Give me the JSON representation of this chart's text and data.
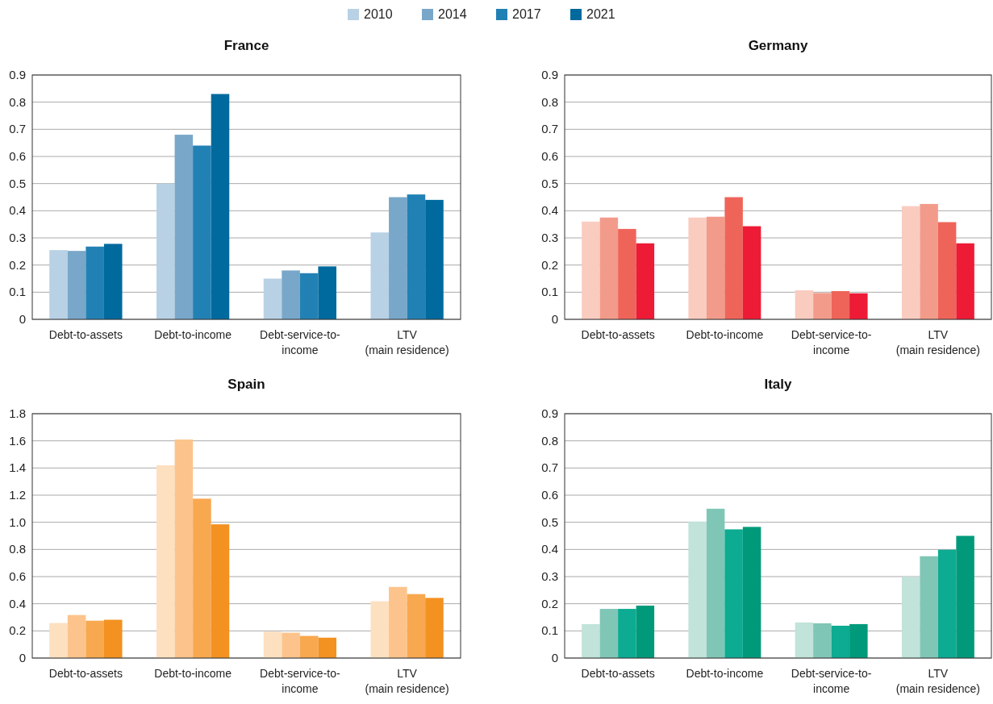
{
  "chart_data": [
    {
      "type": "bar",
      "title": "France",
      "categories": [
        "Debt-to-assets",
        "Debt-to-income",
        "Debt-service-to-income",
        "LTV (main residence)"
      ],
      "legend": "top",
      "grid": "y",
      "ylim": [
        0,
        0.9
      ],
      "yticks": [
        0,
        0.1,
        0.2,
        0.3,
        0.4,
        0.5,
        0.6,
        0.7,
        0.8,
        0.9
      ],
      "series": [
        {
          "name": "2010",
          "color": "#b8d1e5",
          "values": [
            0.255,
            0.5,
            0.15,
            0.32
          ]
        },
        {
          "name": "2014",
          "color": "#78a7c9",
          "values": [
            0.252,
            0.68,
            0.18,
            0.45
          ]
        },
        {
          "name": "2017",
          "color": "#2281b4",
          "values": [
            0.268,
            0.64,
            0.17,
            0.46
          ]
        },
        {
          "name": "2021",
          "color": "#006a9e",
          "values": [
            0.278,
            0.83,
            0.195,
            0.44
          ]
        }
      ]
    },
    {
      "type": "bar",
      "title": "Germany",
      "categories": [
        "Debt-to-assets",
        "Debt-to-income",
        "Debt-service-to-income",
        "LTV (main residence)"
      ],
      "grid": "y",
      "ylim": [
        0,
        0.9
      ],
      "yticks": [
        0,
        0.1,
        0.2,
        0.3,
        0.4,
        0.5,
        0.6,
        0.7,
        0.8,
        0.9
      ],
      "series": [
        {
          "color": "#f9ccbf",
          "values": [
            0.36,
            0.375,
            0.107,
            0.417
          ]
        },
        {
          "color": "#f39b8b",
          "values": [
            0.375,
            0.378,
            0.097,
            0.425
          ]
        },
        {
          "color": "#ef6459",
          "values": [
            0.333,
            0.45,
            0.104,
            0.358
          ]
        },
        {
          "color": "#ed1b36",
          "values": [
            0.28,
            0.343,
            0.096,
            0.28
          ]
        }
      ]
    },
    {
      "type": "bar",
      "title": "Spain",
      "categories": [
        "Debt-to-assets",
        "Debt-to-income",
        "Debt-service-to-income",
        "LTV (main residence)"
      ],
      "grid": "y",
      "ylim": [
        0,
        1.8
      ],
      "yticks": [
        0,
        {
          "value": 0.2,
          "label": "0.2"
        },
        {
          "value": 0.4,
          "label": "0.4"
        },
        {
          "value": 0.6,
          "label": "0.6"
        },
        {
          "value": 0.8,
          "label": "0.8"
        },
        {
          "value": 1.0,
          "label": "1.0"
        },
        {
          "value": 1.2,
          "label": "1.2"
        },
        {
          "value": 1.4,
          "label": "1.4"
        },
        {
          "value": 1.6,
          "label": "1.6"
        },
        {
          "value": 1.8,
          "label": "1.8"
        }
      ],
      "series": [
        {
          "color": "#fde0c0",
          "values": [
            0.258,
            1.42,
            0.194,
            0.418
          ]
        },
        {
          "color": "#fcc48c",
          "values": [
            0.317,
            1.61,
            0.187,
            0.524
          ]
        },
        {
          "color": "#f8a84f",
          "values": [
            0.275,
            1.174,
            0.163,
            0.471
          ]
        },
        {
          "color": "#f39121",
          "values": [
            0.282,
            0.985,
            0.15,
            0.443
          ]
        }
      ]
    },
    {
      "type": "bar",
      "title": "Italy",
      "categories": [
        "Debt-to-assets",
        "Debt-to-income",
        "Debt-service-to-income",
        "LTV (main residence)"
      ],
      "grid": "y",
      "ylim": [
        0,
        0.9
      ],
      "yticks": [
        0,
        0.1,
        0.2,
        0.3,
        0.4,
        0.5,
        0.6,
        0.7,
        0.8,
        0.9
      ],
      "series": [
        {
          "color": "#c1e3d9",
          "values": [
            0.125,
            0.503,
            0.131,
            0.299
          ]
        },
        {
          "color": "#80c6b6",
          "values": [
            0.181,
            0.55,
            0.128,
            0.375
          ]
        },
        {
          "color": "#0cab92",
          "values": [
            0.181,
            0.474,
            0.119,
            0.399
          ]
        },
        {
          "color": "#009a7a",
          "values": [
            0.193,
            0.483,
            0.125,
            0.45
          ]
        }
      ]
    }
  ]
}
